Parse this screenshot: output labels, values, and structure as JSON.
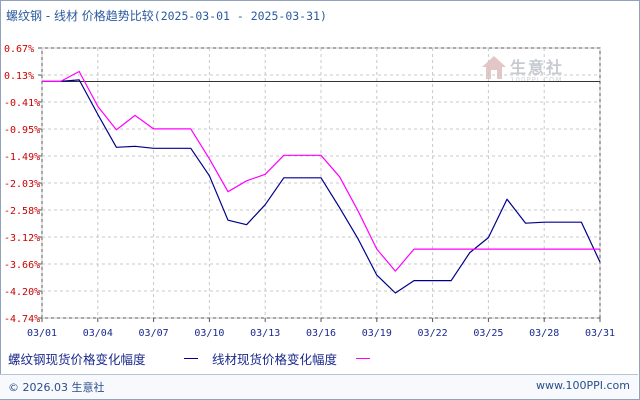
{
  "header": {
    "title": "螺纹钢 - 线材 价格趋势比较",
    "date_range": "(2025-03-01 - 2025-03-31)"
  },
  "logo": {
    "brand": "生意社",
    "sub": "100PPI.COM"
  },
  "footer": {
    "copyright": "© 2026.03 生意社",
    "site": "www.100PPI.com"
  },
  "colors": {
    "series_rebar": "#00008b",
    "series_wire": "#ff00ff",
    "grid": "#c8c8c8",
    "axis": "#555555",
    "tick_text": "#cc0000",
    "baseline": "#333333"
  },
  "chart_data": {
    "type": "line",
    "xlabel": "",
    "ylabel": "",
    "x_ticks": [
      "03/01",
      "03/04",
      "03/07",
      "03/10",
      "03/13",
      "03/16",
      "03/19",
      "03/22",
      "03/25",
      "03/28",
      "03/31"
    ],
    "y_ticks": [
      "0.67%",
      "0.13%",
      "-0.41%",
      "-0.95%",
      "-1.49%",
      "-2.03%",
      "-2.58%",
      "-3.12%",
      "-3.66%",
      "-4.20%",
      "-4.74%"
    ],
    "ylim": [
      -4.74,
      0.67
    ],
    "xlim": [
      1,
      31
    ],
    "baseline": 0,
    "grid": true,
    "legend_position": "bottom",
    "series": [
      {
        "name": "螺纹钢现货价格变化幅度",
        "x": [
          1,
          2,
          3,
          4,
          5,
          6,
          7,
          8,
          9,
          10,
          11,
          12,
          13,
          14,
          15,
          16,
          17,
          18,
          19,
          20,
          21,
          22,
          23,
          24,
          25,
          26,
          27,
          28,
          29,
          30,
          31
        ],
        "y": [
          0,
          0,
          0.03,
          -0.66,
          -1.32,
          -1.3,
          -1.34,
          -1.34,
          -1.34,
          -1.89,
          -2.78,
          -2.87,
          -2.47,
          -1.93,
          -1.93,
          -1.93,
          -2.53,
          -3.16,
          -3.88,
          -4.24,
          -3.99,
          -3.99,
          -3.99,
          -3.43,
          -3.13,
          -2.36,
          -2.84,
          -2.82,
          -2.82,
          -2.82,
          -3.62
        ]
      },
      {
        "name": "线材现货价格变化幅度",
        "x": [
          1,
          2,
          3,
          4,
          5,
          6,
          7,
          8,
          9,
          10,
          11,
          12,
          13,
          14,
          15,
          16,
          17,
          18,
          19,
          20,
          21,
          22,
          23,
          24,
          25,
          26,
          27,
          28,
          29,
          30,
          31
        ],
        "y": [
          0,
          0,
          0.2,
          -0.5,
          -0.97,
          -0.68,
          -0.95,
          -0.95,
          -0.95,
          -1.55,
          -2.21,
          -1.99,
          -1.86,
          -1.48,
          -1.48,
          -1.48,
          -1.91,
          -2.6,
          -3.36,
          -3.8,
          -3.36,
          -3.36,
          -3.36,
          -3.36,
          -3.36,
          -3.36,
          -3.36,
          -3.36,
          -3.36,
          -3.36,
          -3.36
        ]
      }
    ]
  }
}
